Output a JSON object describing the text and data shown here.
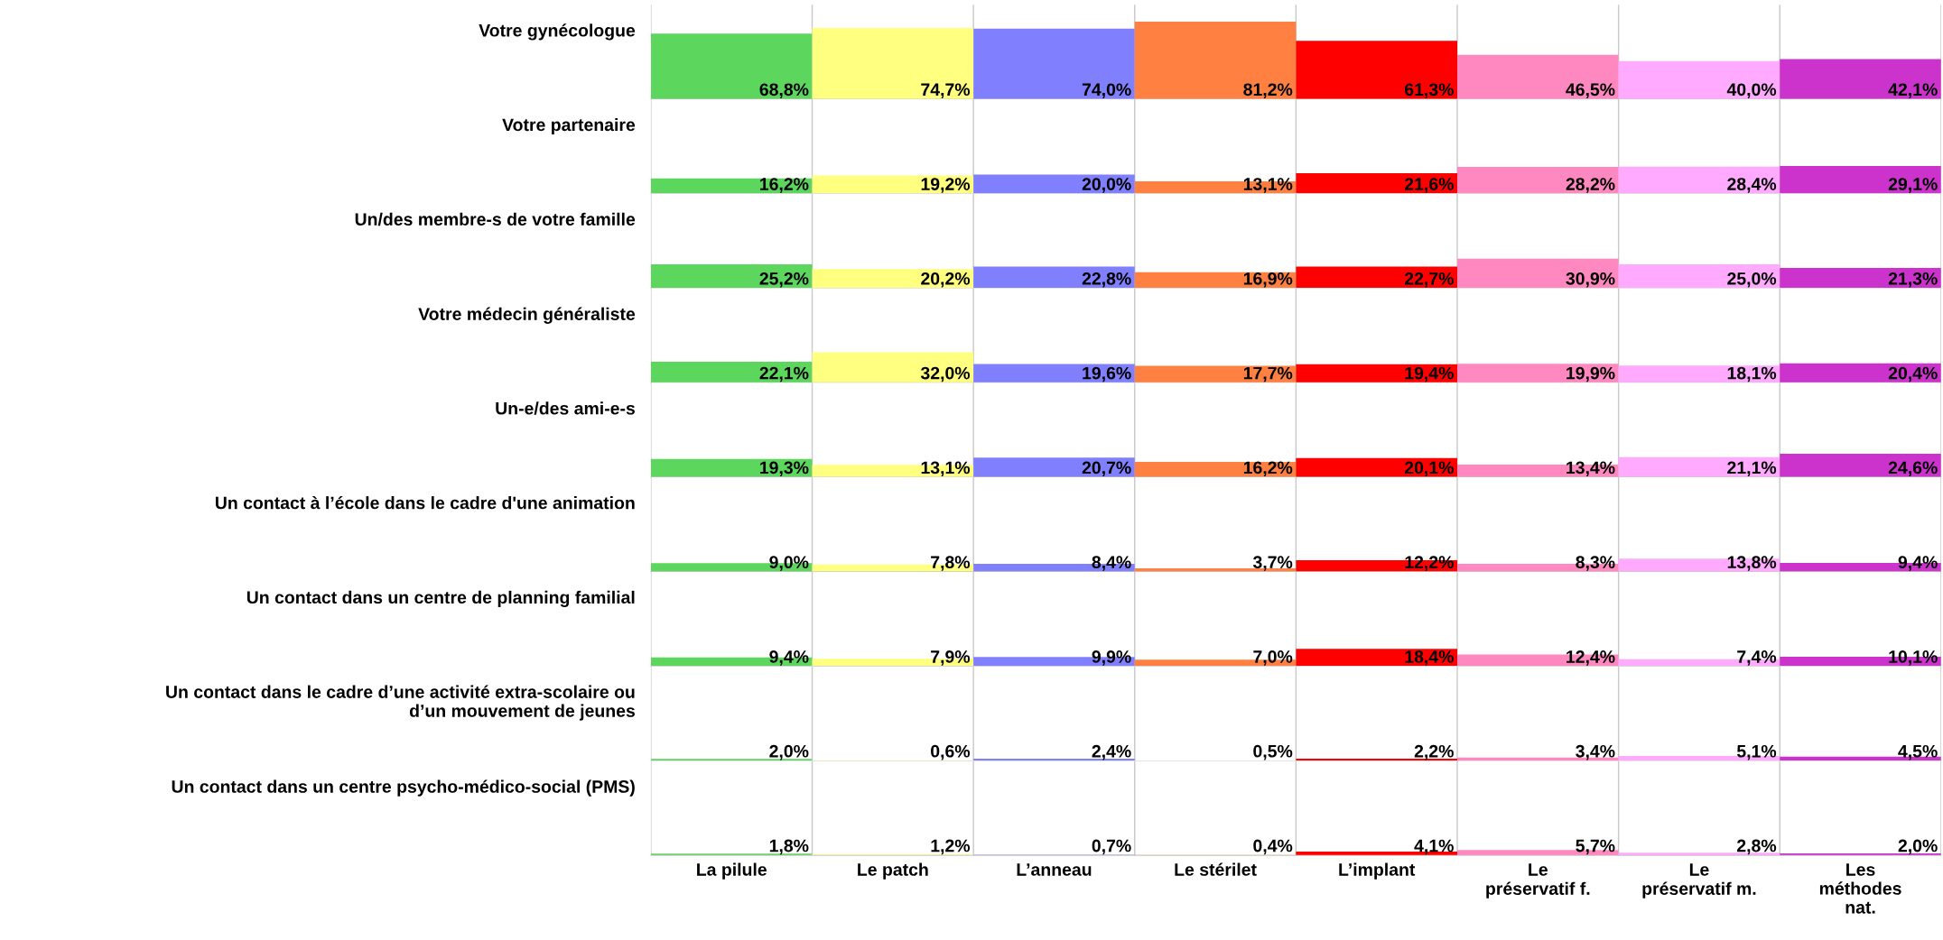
{
  "chart_data": [
    {
      "type": "bar",
      "title": "Votre gynécologue",
      "categories": [
        null,
        null,
        null,
        null,
        null,
        null,
        null,
        null
      ],
      "colors": [
        "#5cd65c",
        "#ffff80",
        "#8080ff",
        "#ff8040",
        "#ff0000",
        "#ff88c0",
        "#ffaaff",
        "#cc33cc"
      ],
      "values": [
        68.8,
        74.7,
        74.0,
        81.2,
        61.3,
        46.5,
        40.0,
        42.1
      ],
      "value_labels": [
        "68,8%",
        "74,7%",
        "74,0%",
        "81,2%",
        "61,3%",
        "46,5%",
        "40,0%",
        "42,1%"
      ]
    },
    {
      "type": "bar",
      "title": "Votre partenaire",
      "categories": [
        null,
        null,
        null,
        null,
        null,
        null,
        null,
        null
      ],
      "colors": [
        "#5cd65c",
        "#ffff80",
        "#8080ff",
        "#ff8040",
        "#ff0000",
        "#ff88c0",
        "#ffaaff",
        "#cc33cc"
      ],
      "values": [
        16.2,
        19.2,
        20.0,
        13.1,
        21.6,
        28.2,
        28.4,
        29.1
      ],
      "value_labels": [
        "16,2%",
        "19,2%",
        "20,0%",
        "13,1%",
        "21,6%",
        "28,2%",
        "28,4%",
        "29,1%"
      ]
    },
    {
      "type": "bar",
      "title": "Un/des membre-s de votre famille",
      "categories": [
        null,
        null,
        null,
        null,
        null,
        null,
        null,
        null
      ],
      "colors": [
        "#5cd65c",
        "#ffff80",
        "#8080ff",
        "#ff8040",
        "#ff0000",
        "#ff88c0",
        "#ffaaff",
        "#cc33cc"
      ],
      "values": [
        25.2,
        20.2,
        22.8,
        16.9,
        22.7,
        30.9,
        25.0,
        21.3
      ],
      "value_labels": [
        "25,2%",
        "20,2%",
        "22,8%",
        "16,9%",
        "22,7%",
        "30,9%",
        "25,0%",
        "21,3%"
      ]
    },
    {
      "type": "bar",
      "title": "Votre médecin généraliste",
      "categories": [
        null,
        null,
        null,
        null,
        null,
        null,
        null,
        null
      ],
      "colors": [
        "#5cd65c",
        "#ffff80",
        "#8080ff",
        "#ff8040",
        "#ff0000",
        "#ff88c0",
        "#ffaaff",
        "#cc33cc"
      ],
      "values": [
        22.1,
        32.0,
        19.6,
        17.7,
        19.4,
        19.9,
        18.1,
        20.4
      ],
      "value_labels": [
        "22,1%",
        "32,0%",
        "19,6%",
        "17,7%",
        "19,4%",
        "19,9%",
        "18,1%",
        "20,4%"
      ]
    },
    {
      "type": "bar",
      "title": "Un-e/des ami-e-s",
      "categories": [
        null,
        null,
        null,
        null,
        null,
        null,
        null,
        null
      ],
      "colors": [
        "#5cd65c",
        "#ffff80",
        "#8080ff",
        "#ff8040",
        "#ff0000",
        "#ff88c0",
        "#ffaaff",
        "#cc33cc"
      ],
      "values": [
        19.3,
        13.1,
        20.7,
        16.2,
        20.1,
        13.4,
        21.1,
        24.6
      ],
      "value_labels": [
        "19,3%",
        "13,1%",
        "20,7%",
        "16,2%",
        "20,1%",
        "13,4%",
        "21,1%",
        "24,6%"
      ]
    },
    {
      "type": "bar",
      "title": "Un contact à l’école dans le cadre d'une animation",
      "categories": [
        null,
        null,
        null,
        null,
        null,
        null,
        null,
        null
      ],
      "colors": [
        "#5cd65c",
        "#ffff80",
        "#8080ff",
        "#ff8040",
        "#ff0000",
        "#ff88c0",
        "#ffaaff",
        "#cc33cc"
      ],
      "values": [
        9.0,
        7.8,
        8.4,
        3.7,
        12.2,
        8.3,
        13.8,
        9.4
      ],
      "value_labels": [
        "9,0%",
        "7,8%",
        "8,4%",
        "3,7%",
        "12,2%",
        "8,3%",
        "13,8%",
        "9,4%"
      ]
    },
    {
      "type": "bar",
      "title": "Un contact dans un centre de planning familial",
      "categories": [
        null,
        null,
        null,
        null,
        null,
        null,
        null,
        null
      ],
      "colors": [
        "#5cd65c",
        "#ffff80",
        "#8080ff",
        "#ff8040",
        "#ff0000",
        "#ff88c0",
        "#ffaaff",
        "#cc33cc"
      ],
      "values": [
        9.4,
        7.9,
        9.9,
        7.0,
        18.4,
        12.4,
        7.4,
        10.1
      ],
      "value_labels": [
        "9,4%",
        "7,9%",
        "9,9%",
        "7,0%",
        "18,4%",
        "12,4%",
        "7,4%",
        "10,1%"
      ]
    },
    {
      "type": "bar",
      "title": "Un contact dans le cadre d’une activité extra-scolaire ou\nd’un mouvement de jeunes",
      "categories": [
        null,
        null,
        null,
        null,
        null,
        null,
        null,
        null
      ],
      "colors": [
        "#5cd65c",
        "#ffff80",
        "#8080ff",
        "#ff8040",
        "#ff0000",
        "#ff88c0",
        "#ffaaff",
        "#cc33cc"
      ],
      "values": [
        2.0,
        0.6,
        2.4,
        0.5,
        2.2,
        3.4,
        5.1,
        4.5
      ],
      "value_labels": [
        "2,0%",
        "0,6%",
        "2,4%",
        "0,5%",
        "2,2%",
        "3,4%",
        "5,1%",
        "4,5%"
      ]
    },
    {
      "type": "bar",
      "title": "Un contact dans un centre psycho-médico-social (PMS)",
      "categories": [
        "La pilule",
        "Le patch",
        "L’anneau",
        "Le stérilet",
        "L’implant",
        "Le\npréservatif f.",
        "Le\npréservatif m.",
        "Les\nméthodes\nnat."
      ],
      "colors": [
        "#5cd65c",
        "#ffff80",
        "#8080ff",
        "#ff8040",
        "#ff0000",
        "#ff88c0",
        "#ffaaff",
        "#cc33cc"
      ],
      "values": [
        1.8,
        1.2,
        0.7,
        0.4,
        4.1,
        5.7,
        2.8,
        2.0
      ],
      "value_labels": [
        "1,8%",
        "1,2%",
        "0,7%",
        "0,4%",
        "4,1%",
        "5,7%",
        "2,8%",
        "2,0%"
      ]
    }
  ]
}
